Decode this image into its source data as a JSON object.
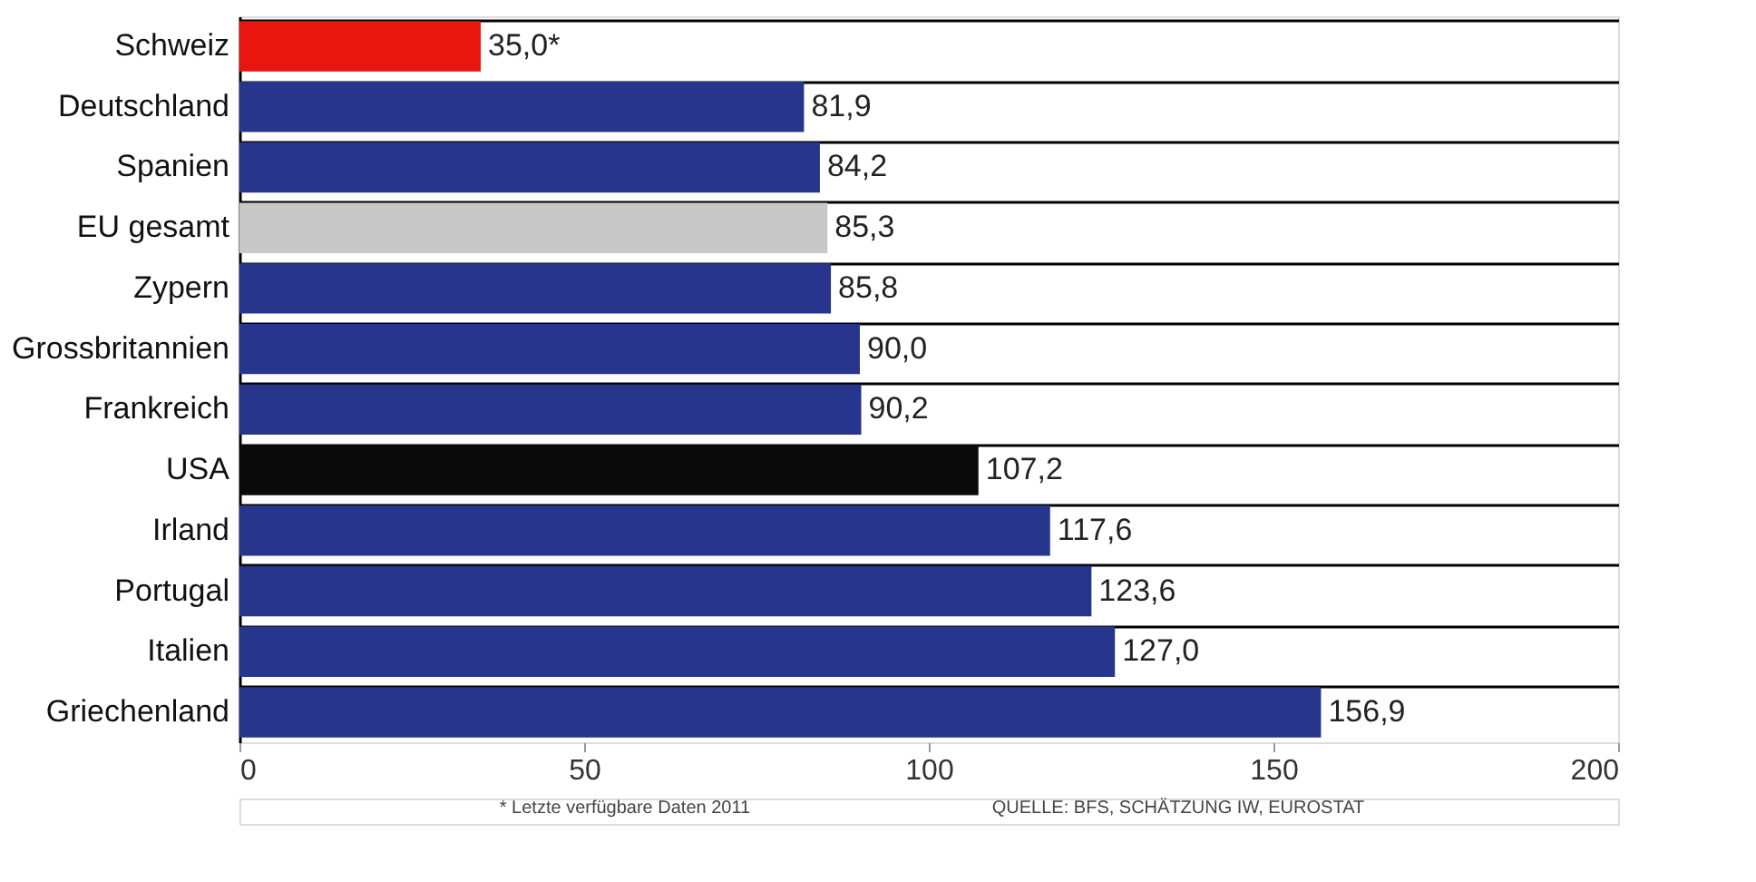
{
  "chart_data": {
    "type": "bar",
    "orientation": "horizontal",
    "categories": [
      "Schweiz",
      "Deutschland",
      "Spanien",
      "EU gesamt",
      "Zypern",
      "Grossbritannien",
      "Frankreich",
      "USA",
      "Irland",
      "Portugal",
      "Italien",
      "Griechenland"
    ],
    "values": [
      35.0,
      81.9,
      84.2,
      85.3,
      85.8,
      90.0,
      90.2,
      107.2,
      117.6,
      123.6,
      127.0,
      156.9
    ],
    "colors": [
      "#e8160f",
      "#27358c",
      "#27358c",
      "#c8c8c8",
      "#27358c",
      "#27358c",
      "#27358c",
      "#0a0a0a",
      "#27358c",
      "#27358c",
      "#27358c",
      "#27358c"
    ],
    "value_labels": [
      "35,0*",
      "81,9",
      "84,2",
      "85,3",
      "85,8",
      "90,0",
      "90,2",
      "107,2",
      "117,6",
      "123,6",
      "127,0",
      "156,9"
    ],
    "xlim": [
      0,
      200
    ],
    "xticks": [
      0,
      50,
      100,
      150,
      200
    ],
    "grid": "y",
    "annotations": [
      "* Letzte verfügbare Daten 2011",
      "QUELLE: BFS, SCHÄTZUNG IW, EUROSTAT"
    ]
  }
}
